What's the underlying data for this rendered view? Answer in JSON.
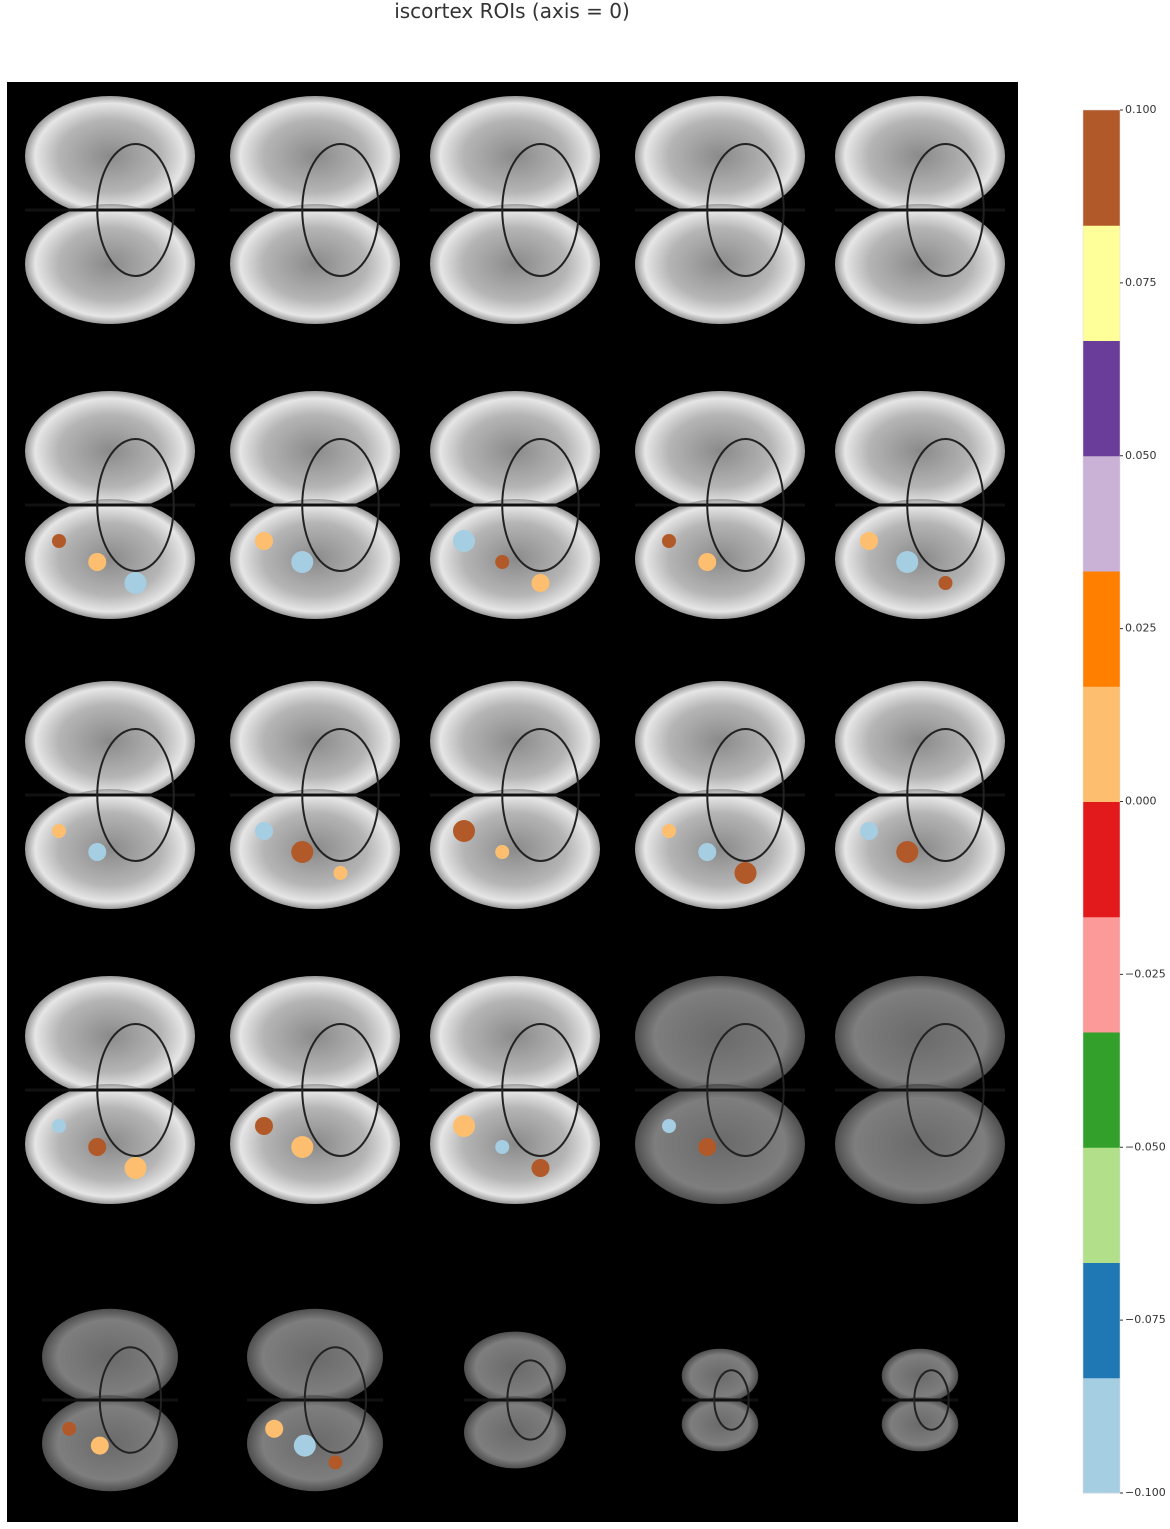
{
  "chart_data": {
    "type": "image-grid",
    "title": "iscortex ROIs (axis = 0)",
    "colorbar": {
      "colors": [
        "#a6cee3",
        "#1f78b4",
        "#b2df8a",
        "#33a02c",
        "#fb9a99",
        "#e31a1c",
        "#fdbf6f",
        "#ff7f00",
        "#cab2d6",
        "#6a3d9a",
        "#ffff99",
        "#b15928"
      ],
      "clim": [
        -0.1,
        0.1
      ],
      "ticks": [
        {
          "value": -0.1,
          "label": "−0.100"
        },
        {
          "value": -0.075,
          "label": "−0.075"
        },
        {
          "value": -0.05,
          "label": "−0.050"
        },
        {
          "value": -0.025,
          "label": "−0.025"
        },
        {
          "value": 0,
          "label": "0.000"
        },
        {
          "value": 0.025,
          "label": "0.025"
        },
        {
          "value": 0.05,
          "label": "0.050"
        },
        {
          "value": 0.075,
          "label": "0.075"
        },
        {
          "value": 0.1,
          "label": "0.100"
        }
      ]
    }
  }
}
